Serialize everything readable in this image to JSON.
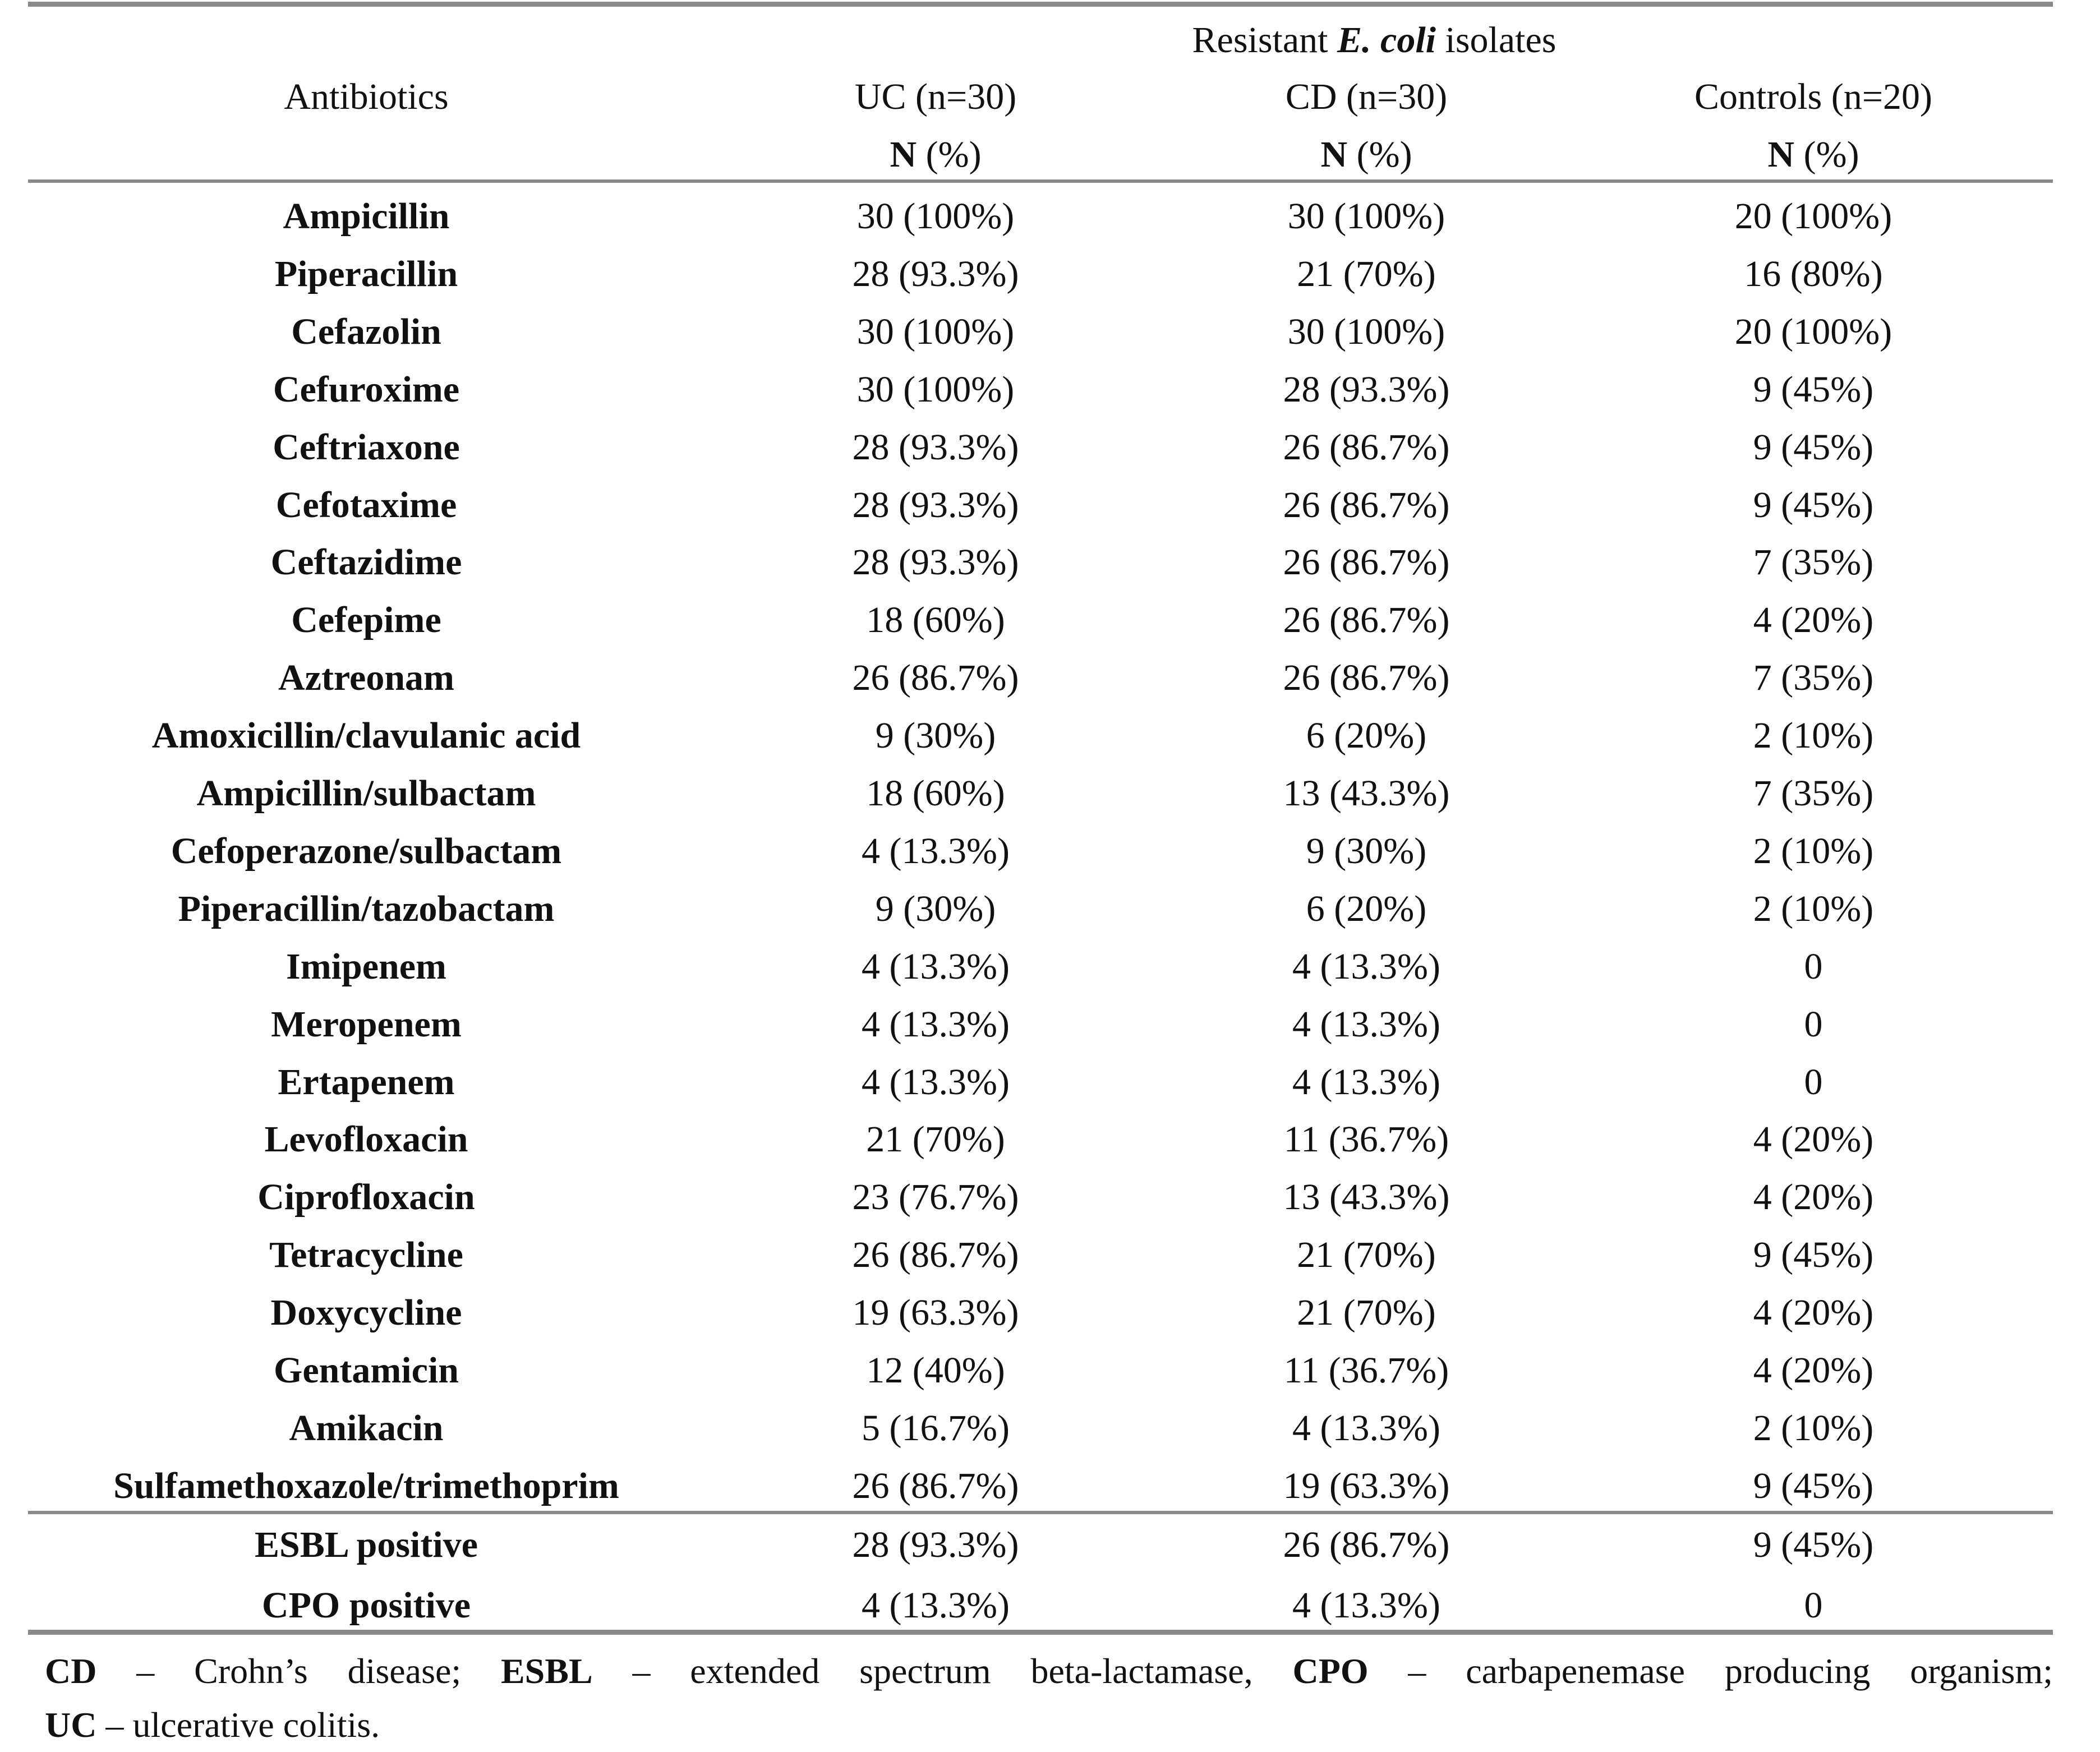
{
  "header": {
    "group_label": {
      "before": "Resistant ",
      "italic": "E. coli",
      "after": " isolates"
    },
    "columns": [
      {
        "name": "Antibiotics"
      },
      {
        "name": "UC (n=30)",
        "unit_symbol": "N",
        "unit": "(%)"
      },
      {
        "name": "CD (n=30)",
        "unit_symbol": "N",
        "unit": "(%)"
      },
      {
        "name": "Controls (n=20)",
        "unit_symbol": "N",
        "unit": "(%)"
      }
    ]
  },
  "table": {
    "rows": [
      [
        "Ampicillin",
        "30 (100%)",
        "30 (100%)",
        "20 (100%)"
      ],
      [
        "Piperacillin",
        "28 (93.3%)",
        "21 (70%)",
        "16 (80%)"
      ],
      [
        "Cefazolin",
        "30 (100%)",
        "30 (100%)",
        "20 (100%)"
      ],
      [
        "Cefuroxime",
        "30 (100%)",
        "28 (93.3%)",
        "9 (45%)"
      ],
      [
        "Ceftriaxone",
        "28 (93.3%)",
        "26 (86.7%)",
        "9 (45%)"
      ],
      [
        "Cefotaxime",
        "28 (93.3%)",
        "26 (86.7%)",
        "9 (45%)"
      ],
      [
        "Ceftazidime",
        "28 (93.3%)",
        "26 (86.7%)",
        "7 (35%)"
      ],
      [
        "Cefepime",
        "18 (60%)",
        "26 (86.7%)",
        "4 (20%)"
      ],
      [
        "Aztreonam",
        "26 (86.7%)",
        "26 (86.7%)",
        "7 (35%)"
      ],
      [
        "Amoxicillin/clavulanic acid",
        "9 (30%)",
        "6 (20%)",
        "2 (10%)"
      ],
      [
        "Ampicillin/sulbactam",
        "18 (60%)",
        "13 (43.3%)",
        "7 (35%)"
      ],
      [
        "Cefoperazone/sulbactam",
        "4 (13.3%)",
        "9 (30%)",
        "2 (10%)"
      ],
      [
        "Piperacillin/tazobactam",
        "9 (30%)",
        "6 (20%)",
        "2 (10%)"
      ],
      [
        "Imipenem",
        "4 (13.3%)",
        "4 (13.3%)",
        "0"
      ],
      [
        "Meropenem",
        "4 (13.3%)",
        "4 (13.3%)",
        "0"
      ],
      [
        "Ertapenem",
        "4 (13.3%)",
        "4 (13.3%)",
        "0"
      ],
      [
        "Levofloxacin",
        "21 (70%)",
        "11 (36.7%)",
        "4 (20%)"
      ],
      [
        "Ciprofloxacin",
        "23 (76.7%)",
        "13 (43.3%)",
        "4 (20%)"
      ],
      [
        "Tetracycline",
        "26 (86.7%)",
        "21 (70%)",
        "9 (45%)"
      ],
      [
        "Doxycycline",
        "19 (63.3%)",
        "21 (70%)",
        "4 (20%)"
      ],
      [
        "Gentamicin",
        "12 (40%)",
        "11 (36.7%)",
        "4 (20%)"
      ],
      [
        "Amikacin",
        "5 (16.7%)",
        "4 (13.3%)",
        "2 (10%)"
      ],
      [
        "Sulfamethoxazole/trimethoprim",
        "26 (86.7%)",
        "19 (63.3%)",
        "9 (45%)"
      ]
    ],
    "summary_rows": [
      [
        "ESBL positive",
        "28 (93.3%)",
        "26 (86.7%)",
        "9 (45%)"
      ],
      [
        "CPO positive",
        "4 (13.3%)",
        "4 (13.3%)",
        "0"
      ]
    ]
  },
  "footnote": {
    "lines": [
      [
        {
          "text": "CD",
          "bold": true
        },
        {
          "text": " – Crohn’s disease; ",
          "bold": false
        },
        {
          "text": "ESBL",
          "bold": true
        },
        {
          "text": " – extended spectrum beta-lactamase, ",
          "bold": false
        },
        {
          "text": "CPO",
          "bold": true
        },
        {
          "text": " – carbapenemase producing organism;",
          "bold": false
        }
      ],
      [
        {
          "text": "UC",
          "bold": true
        },
        {
          "text": " – ulcerative colitis.",
          "bold": false
        }
      ]
    ]
  }
}
